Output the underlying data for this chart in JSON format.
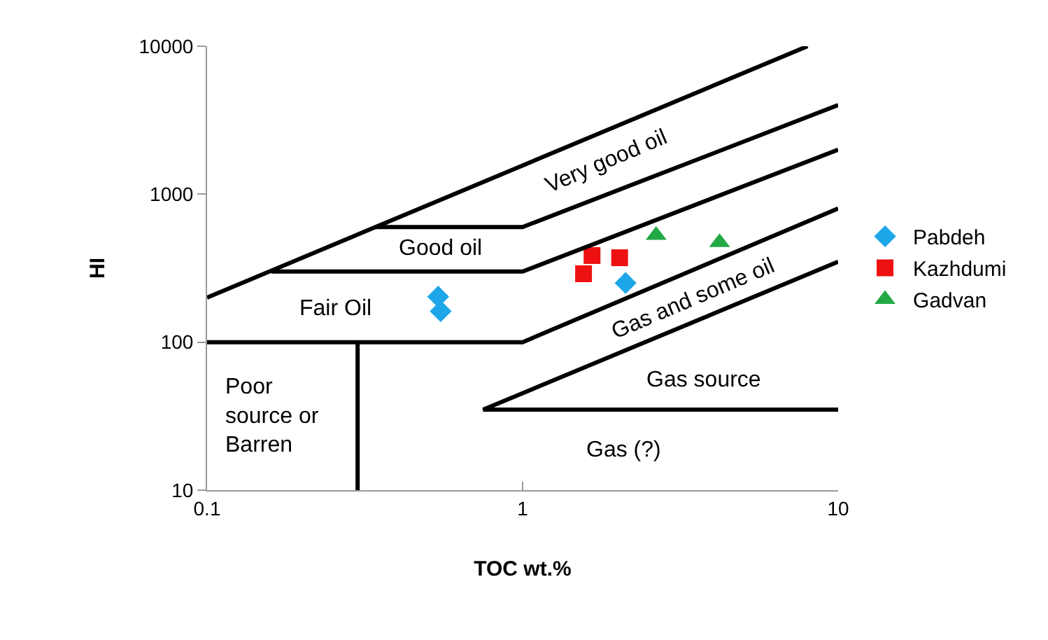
{
  "chart_data": {
    "type": "scatter",
    "xlabel": "TOC wt.%",
    "ylabel": "HI",
    "log": "xy",
    "xlim": [
      0.1,
      10
    ],
    "ylim": [
      10,
      10000
    ],
    "xticks": [
      0.1,
      1,
      10
    ],
    "yticks": [
      10,
      100,
      1000,
      10000
    ],
    "grid": false,
    "legend": "right",
    "series": [
      {
        "name": "Pabdeh",
        "color": "#1ea7e8",
        "marker": "diamond",
        "x": [
          0.54,
          0.55,
          2.12
        ],
        "values": [
          203,
          162,
          251
        ]
      },
      {
        "name": "Kazhdumi",
        "color": "#ee1111",
        "marker": "square",
        "x": [
          1.66,
          1.56,
          2.03
        ],
        "values": [
          385,
          290,
          372
        ]
      },
      {
        "name": "Gadvan",
        "color": "#22a845",
        "marker": "triangle",
        "x": [
          2.65,
          4.21
        ],
        "values": [
          527,
          472
        ]
      },
      {
        "type": "line",
        "color": "#000000",
        "marker": "none",
        "x": [
          0.1,
          8
        ],
        "values": [
          200,
          10000
        ]
      },
      {
        "type": "line",
        "color": "#000000",
        "marker": "none",
        "x": [
          0.34,
          1,
          10
        ],
        "values": [
          600,
          600,
          4000
        ]
      },
      {
        "type": "line",
        "color": "#000000",
        "marker": "none",
        "x": [
          0.16,
          1,
          10
        ],
        "values": [
          300,
          300,
          2000
        ]
      },
      {
        "type": "line",
        "color": "#000000",
        "marker": "none",
        "x": [
          0.1,
          1,
          10
        ],
        "values": [
          100,
          100,
          800
        ]
      },
      {
        "type": "line",
        "color": "#000000",
        "marker": "none",
        "x": [
          0.3,
          0.3
        ],
        "values": [
          10,
          100
        ]
      },
      {
        "type": "line",
        "color": "#000000",
        "marker": "none",
        "x": [
          10,
          0.75,
          10
        ],
        "values": [
          350,
          35,
          35
        ]
      }
    ],
    "annotations": [
      "Very good oil",
      "Good oil",
      "Fair Oil",
      "Poor\nsource or\nBarren",
      "Gas and some oil",
      "Gas source",
      "Gas (?)"
    ]
  }
}
